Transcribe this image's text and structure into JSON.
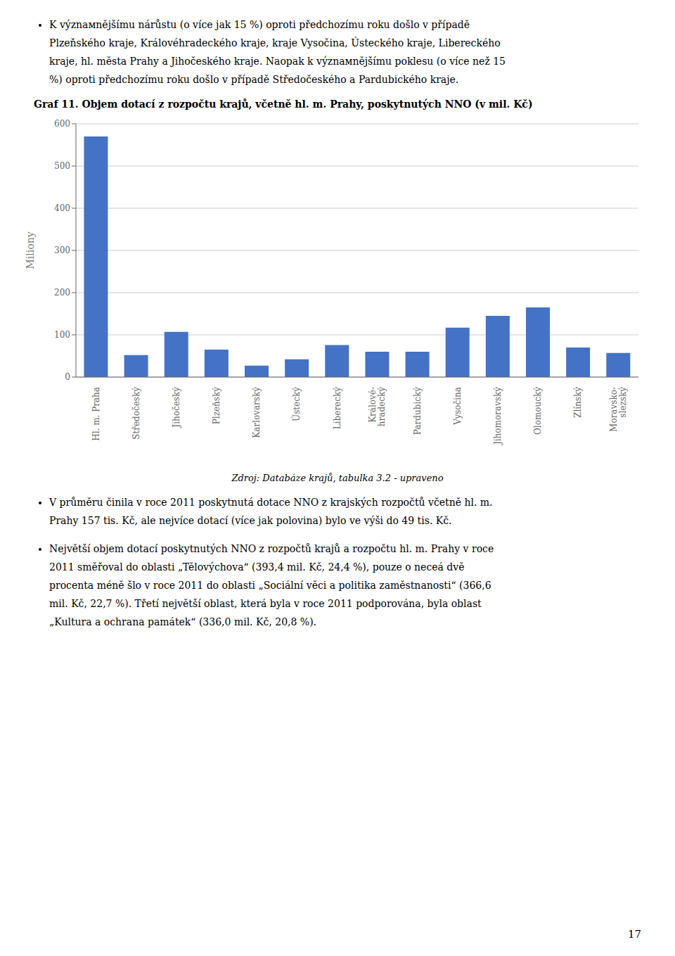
{
  "chart_data": {
    "type": "bar",
    "title": "Graf 11. Objem dotací z rozpočtu krajů, včetně hl. m. Prahy, poskytnutých NNO (v mil. Kč)",
    "ylabel": "Miliony",
    "categories": [
      "Hl. m. Praha",
      "Středočeský",
      "Jihočeský",
      "Plzeňský",
      "Karlovarský",
      "Ústecký",
      "Liberecký",
      "Králové-\nhradecký",
      "Pardubický",
      "Vysočina",
      "Jihomoravský",
      "Olomoucký",
      "Zlínský",
      "Moravsko-\nslezský"
    ],
    "values": [
      570,
      52,
      107,
      65,
      27,
      42,
      76,
      60,
      60,
      117,
      145,
      165,
      70,
      57
    ],
    "color": "#4472C4",
    "ylim": [
      0,
      600
    ],
    "yticks": [
      0,
      100,
      200,
      300,
      400,
      500,
      600
    ],
    "grid": true,
    "source": "Zdroj: Databáze krajů, tabulka 3.2 - upraveno",
    "paragraphs_before": [
      [
        "K význамnějšímu nárůstu (o více jak 15 %) oproti předchozímu roku došlo v případě",
        "Plzeňského kraje, Královéhradeckého kraje, kraje Vysočina, Ústeckého kraje, Libereckého",
        "kraje, hl. města Prahy a Jihočeského kraje. Naopak k význамnějšímu poklesu (o více než 15",
        "%) oproti předchozímu roku došlo v případě Středočeského a Pardubického kraje."
      ]
    ],
    "paragraphs_after": [
      [
        "V průměru činila v roce 2011 poskytnutá dotace NNO z krajských rozpočtů včetně hl. m.",
        "Prahy 157 tis. Kč, ale nejvíce dotací (více jak polovina) bylo ve výši do 49 tis. Kč."
      ],
      [
        "Největší objem dotací poskytnutých NNO z rozpočtů krajů a rozpočtu hl. m. Prahy v roce",
        "2011 směřoval do oblasti „Tělovýchova“ (393,4 mil. Kč, 24,4 %), pouze o neceá dvě",
        "procenta méně šlo v roce 2011 do oblasti „Sociální věci a politika zaměstnanosti“ (366,6",
        "mil. Kč, 22,7 %). Třetí největší oblast, která byla v roce 2011 podporována, byla oblast",
        "„Kultura a ochrana památek“ (336,0 mil. Kč, 20,8 %)."
      ]
    ],
    "page_number": "17"
  }
}
